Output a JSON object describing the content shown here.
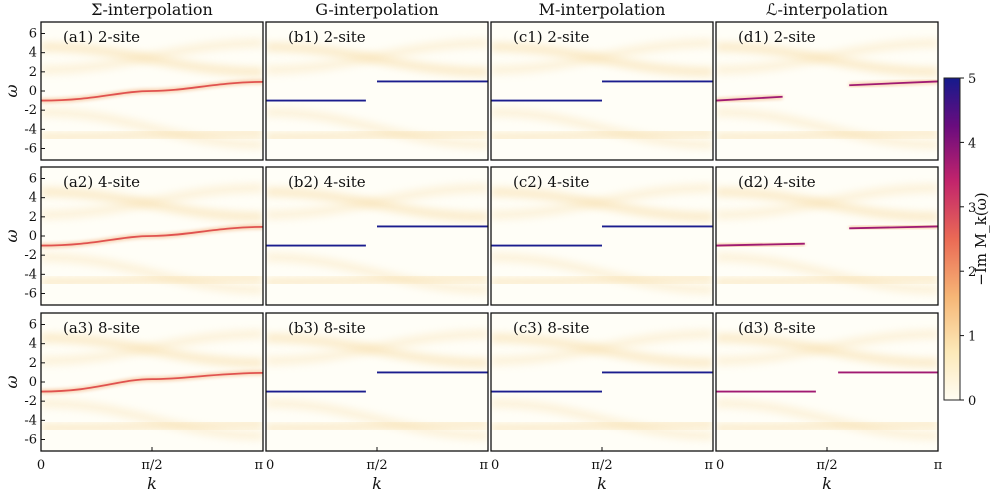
{
  "chart_data": {
    "type": "heatmap",
    "colorbar": {
      "label": "−Im M_k(ω)",
      "min": 0,
      "max": 5,
      "ticks": [
        "0",
        "1",
        "2",
        "3",
        "4",
        "5"
      ],
      "colors": [
        "#fffdf3",
        "#fce9b8",
        "#f6b676",
        "#ea6a55",
        "#c2246c",
        "#6a0c7e",
        "#151a8c"
      ]
    },
    "ylabel": "ω",
    "xlabel": "k",
    "ylim": [
      -7.2,
      7.2
    ],
    "y_ticks": [
      "-6",
      "-4",
      "-2",
      "0",
      "2",
      "4",
      "6"
    ],
    "x_ticks": [
      "0",
      "π/2",
      "π"
    ],
    "columns": [
      {
        "title": "Σ-interpolation"
      },
      {
        "title": "G-interpolation"
      },
      {
        "title": "M-interpolation"
      },
      {
        "title": "ℒ-interpolation"
      }
    ],
    "panels": [
      [
        {
          "label": "(a1) 2-site",
          "bands": [
            {
              "k": [
                0,
                0.5,
                1
              ],
              "w": [
                -1.0,
                0.0,
                0.95
              ],
              "intensity": 2.5
            }
          ]
        },
        {
          "label": "(b1) 2-site",
          "bands": [
            {
              "k": [
                0,
                0.45
              ],
              "w": [
                -1.0,
                -1.0
              ],
              "intensity": 5
            },
            {
              "k": [
                0.5,
                1
              ],
              "w": [
                1.0,
                1.0
              ],
              "intensity": 5
            }
          ]
        },
        {
          "label": "(c1) 2-site",
          "bands": [
            {
              "k": [
                0,
                0.5
              ],
              "w": [
                -1.0,
                -1.0
              ],
              "intensity": 5
            },
            {
              "k": [
                0.5,
                1
              ],
              "w": [
                1.0,
                1.0
              ],
              "intensity": 5
            }
          ]
        },
        {
          "label": "(d1) 2-site",
          "bands": [
            {
              "k": [
                0,
                0.3
              ],
              "w": [
                -1.0,
                -0.6
              ],
              "intensity": 4
            },
            {
              "k": [
                0.6,
                1
              ],
              "w": [
                0.6,
                1.0
              ],
              "intensity": 4
            }
          ]
        }
      ],
      [
        {
          "label": "(a2) 4-site",
          "bands": [
            {
              "k": [
                0,
                0.5,
                1
              ],
              "w": [
                -1.0,
                0.0,
                0.95
              ],
              "intensity": 2.5
            }
          ]
        },
        {
          "label": "(b2) 4-site",
          "bands": [
            {
              "k": [
                0,
                0.45
              ],
              "w": [
                -1.0,
                -1.0
              ],
              "intensity": 5
            },
            {
              "k": [
                0.5,
                1
              ],
              "w": [
                1.0,
                1.0
              ],
              "intensity": 5
            }
          ]
        },
        {
          "label": "(c2) 4-site",
          "bands": [
            {
              "k": [
                0,
                0.5
              ],
              "w": [
                -1.0,
                -1.0
              ],
              "intensity": 5
            },
            {
              "k": [
                0.5,
                1
              ],
              "w": [
                1.0,
                1.0
              ],
              "intensity": 5
            }
          ]
        },
        {
          "label": "(d2) 4-site",
          "bands": [
            {
              "k": [
                0,
                0.4
              ],
              "w": [
                -1.0,
                -0.8
              ],
              "intensity": 4
            },
            {
              "k": [
                0.6,
                1
              ],
              "w": [
                0.8,
                1.0
              ],
              "intensity": 4
            }
          ]
        }
      ],
      [
        {
          "label": "(a3) 8-site",
          "bands": [
            {
              "k": [
                0,
                0.5,
                1
              ],
              "w": [
                -1.0,
                0.3,
                0.95
              ],
              "intensity": 2.5
            }
          ]
        },
        {
          "label": "(b3) 8-site",
          "bands": [
            {
              "k": [
                0,
                0.45
              ],
              "w": [
                -1.0,
                -1.0
              ],
              "intensity": 5
            },
            {
              "k": [
                0.5,
                1
              ],
              "w": [
                1.0,
                1.0
              ],
              "intensity": 5
            }
          ]
        },
        {
          "label": "(c3) 8-site",
          "bands": [
            {
              "k": [
                0,
                0.5
              ],
              "w": [
                -1.0,
                -1.0
              ],
              "intensity": 5
            },
            {
              "k": [
                0.5,
                1
              ],
              "w": [
                1.0,
                1.0
              ],
              "intensity": 5
            }
          ]
        },
        {
          "label": "(d3) 8-site",
          "bands": [
            {
              "k": [
                0,
                0.45
              ],
              "w": [
                -1.0,
                -1.0
              ],
              "intensity": 4
            },
            {
              "k": [
                0.55,
                1
              ],
              "w": [
                1.0,
                1.0
              ],
              "intensity": 4
            }
          ]
        }
      ]
    ]
  }
}
